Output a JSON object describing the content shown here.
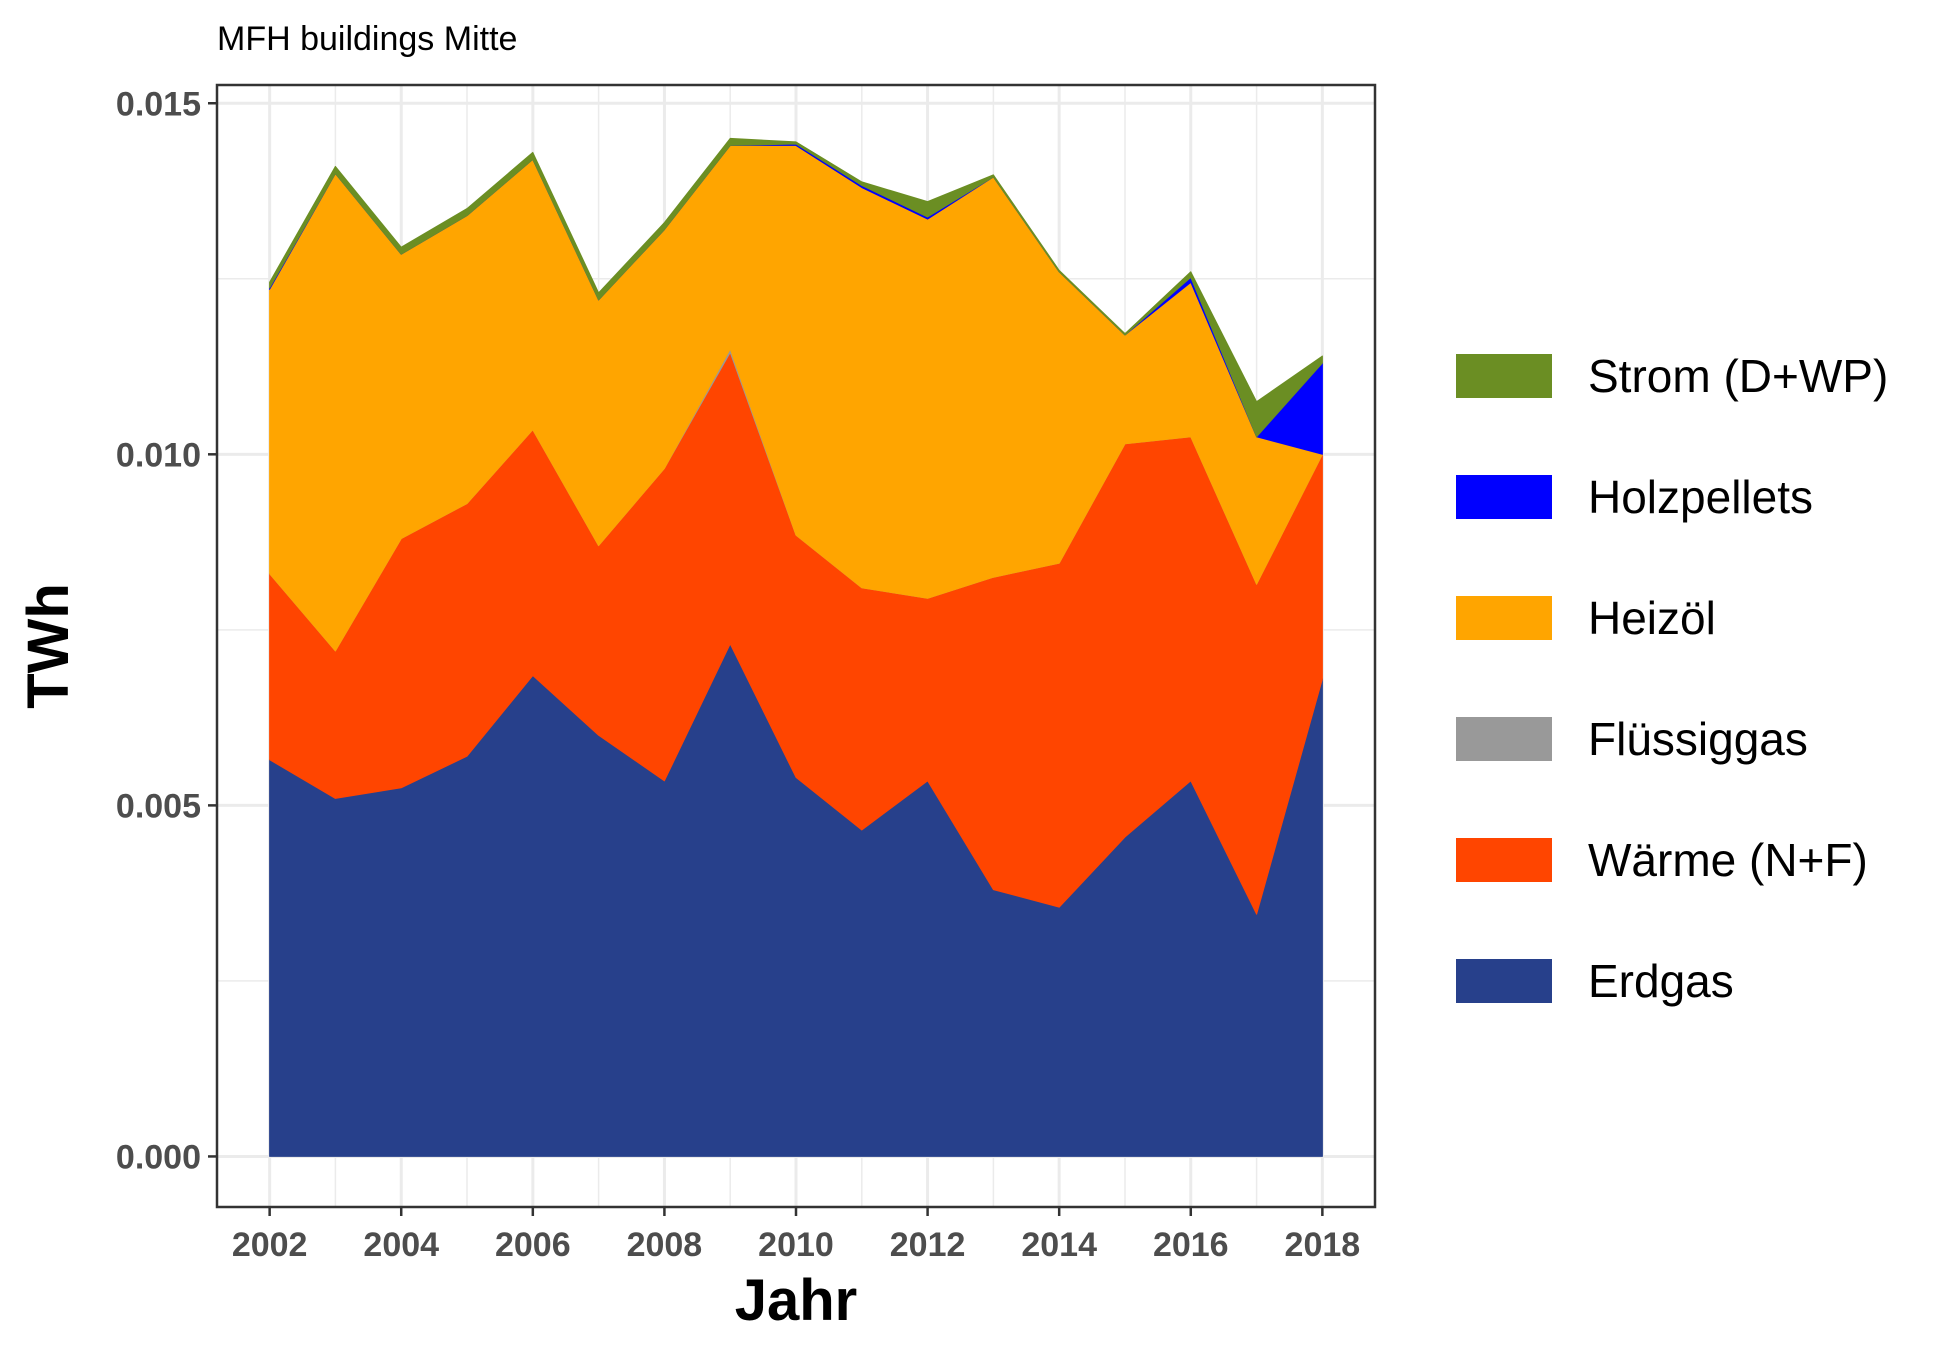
{
  "chart_data": {
    "type": "area",
    "stacked": true,
    "title": "MFH buildings Mitte",
    "xlabel": "Jahr",
    "ylabel": "TWh",
    "x": [
      2002,
      2003,
      2004,
      2005,
      2006,
      2007,
      2008,
      2009,
      2010,
      2011,
      2012,
      2013,
      2014,
      2015,
      2016,
      2017,
      2018
    ],
    "xlim": [
      2001.2,
      2018.8
    ],
    "ylim": [
      -0.00072,
      0.01526
    ],
    "x_ticks": [
      2002,
      2004,
      2006,
      2008,
      2010,
      2012,
      2014,
      2016,
      2018
    ],
    "x_tick_labels": [
      "2002",
      "2004",
      "2006",
      "2008",
      "2010",
      "2012",
      "2014",
      "2016",
      "2018"
    ],
    "y_ticks": [
      0.0,
      0.005,
      0.01,
      0.015
    ],
    "y_tick_labels": [
      "0.000",
      "0.005",
      "0.010",
      "0.015"
    ],
    "grid": true,
    "legend_position": "right",
    "series": [
      {
        "name": "Erdgas",
        "color": "#27408B",
        "values": [
          0.00565,
          0.0051,
          0.00525,
          0.0057,
          0.00685,
          0.006,
          0.00535,
          0.0073,
          0.0054,
          0.00465,
          0.00535,
          0.0038,
          0.00355,
          0.00455,
          0.00535,
          0.00345,
          0.0068
        ]
      },
      {
        "name": "Wärme (N+F)",
        "color": "#FF4500",
        "values": [
          0.00265,
          0.0021,
          0.00355,
          0.0036,
          0.0035,
          0.0027,
          0.00445,
          0.00415,
          0.00345,
          0.00345,
          0.0026,
          0.00445,
          0.0049,
          0.0056,
          0.0049,
          0.0047,
          0.0032
        ]
      },
      {
        "name": "Flüssiggas",
        "color": "#999999",
        "values": [
          0.0,
          0.0,
          0.0,
          0.0,
          0.0,
          0.0,
          0.0,
          5e-05,
          0.0,
          0.0,
          0.0,
          0.0,
          0.0,
          0.0,
          0.0,
          0.0,
          0.0
        ]
      },
      {
        "name": "Heizöl",
        "color": "#FFA500",
        "values": [
          0.00405,
          0.0068,
          0.00405,
          0.0041,
          0.00385,
          0.0035,
          0.0034,
          0.0029,
          0.00555,
          0.0057,
          0.0054,
          0.0057,
          0.00415,
          0.00155,
          0.0022,
          0.0021,
          0.0
        ]
      },
      {
        "name": "Holzpellets",
        "color": "#0000FF",
        "values": [
          2e-05,
          0.0,
          0.0,
          0.0,
          0.0,
          0.0,
          0.0,
          0.0,
          2e-05,
          3e-05,
          3e-05,
          0.0,
          0.0,
          0.0,
          7e-05,
          0.0,
          0.0013
        ]
      },
      {
        "name": "Strom (D+WP)",
        "color": "#6B8E23",
        "values": [
          8e-05,
          0.0001,
          0.0001,
          0.0001,
          0.0001,
          0.0001,
          0.0001,
          0.0001,
          3e-05,
          5e-05,
          0.00022,
          3e-05,
          2e-05,
          2e-05,
          8e-05,
          0.0005,
          0.0001
        ]
      }
    ],
    "legend_order": [
      "Strom (D+WP)",
      "Holzpellets",
      "Heizöl",
      "Flüssiggas",
      "Wärme (N+F)",
      "Erdgas"
    ]
  }
}
